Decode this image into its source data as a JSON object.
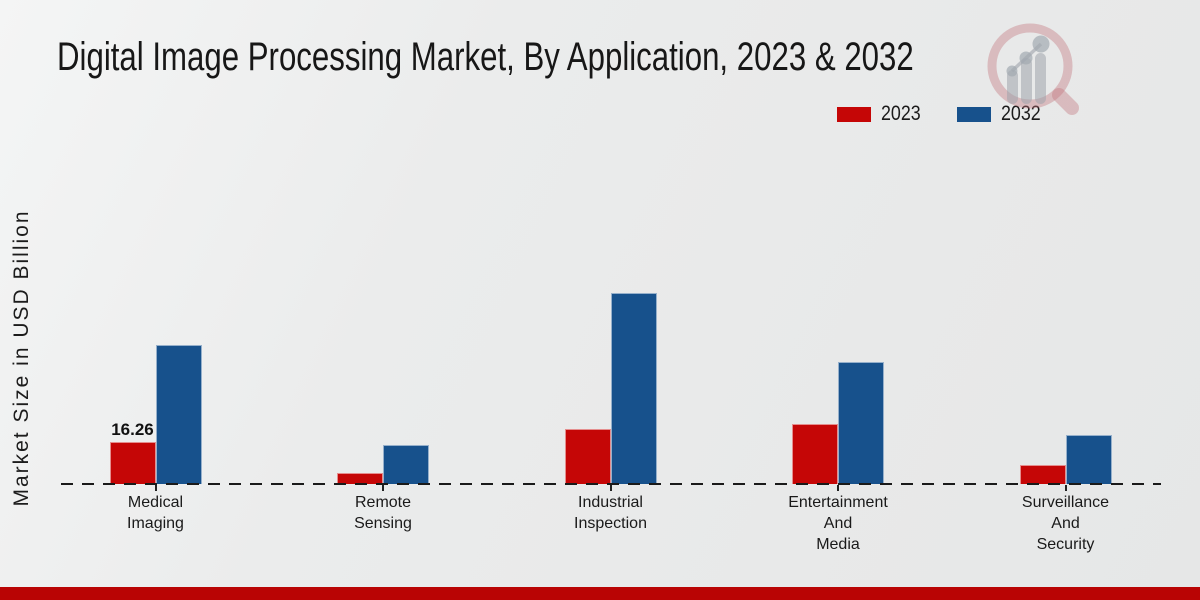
{
  "title": "Digital Image Processing Market, By Application, 2023 & 2032",
  "ylabel": "Market Size in USD Billion",
  "legend": {
    "items": [
      {
        "label": "2023",
        "color": "#c50606"
      },
      {
        "label": "2032",
        "color": "#17518c"
      }
    ]
  },
  "colors": {
    "bar_2023": "#c50606",
    "bar_2032": "#17518c",
    "footer_band": "#b90404",
    "axis_line": "#1a1a1a",
    "background": "#eaebeb",
    "text": "#1a1a1a"
  },
  "chart_data": {
    "type": "bar",
    "title": "Digital Image Processing Market, By Application, 2023 & 2032",
    "xlabel": "",
    "ylabel": "Market Size in USD Billion",
    "categories": [
      "Medical Imaging",
      "Remote Sensing",
      "Industrial Inspection",
      "Entertainment And Media",
      "Surveillance And Security"
    ],
    "category_label_lines": [
      [
        "Medical",
        "Imaging"
      ],
      [
        "Remote",
        "Sensing"
      ],
      [
        "Industrial",
        "Inspection"
      ],
      [
        "Entertainment",
        "And",
        "Media"
      ],
      [
        "Surveillance",
        "And",
        "Security"
      ]
    ],
    "series": [
      {
        "name": "2023",
        "color": "#c50606",
        "values": [
          16.26,
          4.2,
          21.3,
          23.2,
          7.4
        ]
      },
      {
        "name": "2032",
        "color": "#17518c",
        "values": [
          53.8,
          15.1,
          74.0,
          47.2,
          19.0
        ]
      }
    ],
    "bar_labels": [
      {
        "series": 0,
        "category_index": 0,
        "text": "16.26"
      }
    ],
    "ylim": [
      0,
      80
    ],
    "grid": false,
    "y_axis_ticks_visible": false,
    "baseline_style": "dashed",
    "legend_position": "top-right"
  }
}
